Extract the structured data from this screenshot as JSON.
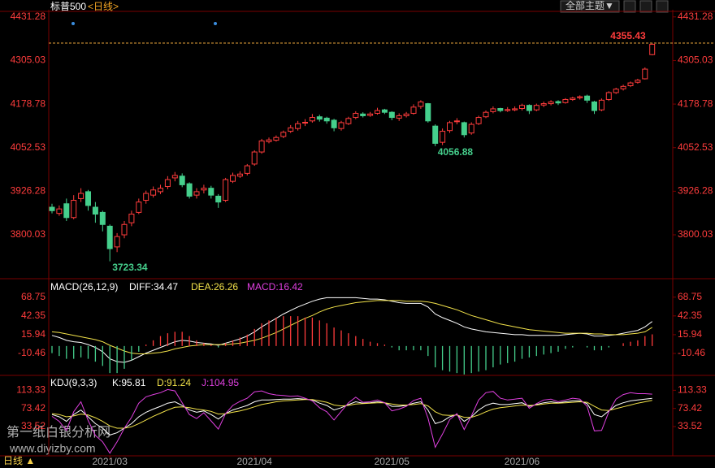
{
  "toolbar": {
    "theme_button": "全部主题▼"
  },
  "footer": {
    "period": "日线 ▲"
  },
  "watermark": {
    "line1": "第一纸白银分析网",
    "line2": "www.diyizby.com"
  },
  "chart_data": [
    {
      "type": "candlestick",
      "title": "标普500",
      "subtitle": "<日线>",
      "up_color": "#ff3c3c",
      "down_color": "#45cf8c",
      "ylim": [
        3680,
        4452
      ],
      "yticks": [
        4431.28,
        4305.03,
        4178.78,
        4052.53,
        3926.28,
        3800.03
      ],
      "xticks": [
        {
          "value": 8,
          "label": "2021/03"
        },
        {
          "value": 28,
          "label": "2021/04"
        },
        {
          "value": 47,
          "label": "2021/05"
        },
        {
          "value": 65,
          "label": "2021/06"
        }
      ],
      "labeled_points": [
        {
          "field": "low",
          "index": 8,
          "color": "#45cf8c"
        },
        {
          "field": "low",
          "index": 53,
          "color": "#45cf8c"
        },
        {
          "field": "high",
          "index": 83,
          "color": "#ff3c3c",
          "line": true
        }
      ],
      "candles": {
        "open": [
          3880,
          3862,
          3890,
          3850,
          3905,
          3925,
          3880,
          3865,
          3825,
          3765,
          3800,
          3835,
          3865,
          3900,
          3915,
          3925,
          3940,
          3965,
          3970,
          3948,
          3915,
          3930,
          3935,
          3912,
          3900,
          3955,
          3970,
          3978,
          4005,
          4040,
          4070,
          4074,
          4085,
          4100,
          4108,
          4125,
          4130,
          4142,
          4138,
          4132,
          4108,
          4122,
          4140,
          4150,
          4146,
          4152,
          4162,
          4155,
          4138,
          4145,
          4152,
          4172,
          4180,
          4115,
          4068,
          4102,
          4128,
          4125,
          4095,
          4122,
          4142,
          4157,
          4166,
          4160,
          4162,
          4166,
          4175,
          4162,
          4176,
          4180,
          4186,
          4183,
          4192,
          4197,
          4202,
          4185,
          4162,
          4192,
          4212,
          4223,
          4232,
          4242,
          4252,
          4322
        ],
        "high": [
          3890,
          3885,
          3905,
          3915,
          3935,
          3930,
          3895,
          3870,
          3830,
          3805,
          3840,
          3870,
          3905,
          3928,
          3940,
          3945,
          3970,
          3982,
          3978,
          3952,
          3935,
          3945,
          3942,
          3918,
          3965,
          3980,
          3984,
          4005,
          4045,
          4078,
          4082,
          4088,
          4102,
          4118,
          4130,
          4135,
          4150,
          4148,
          4142,
          4136,
          4130,
          4142,
          4158,
          4155,
          4156,
          4168,
          4165,
          4158,
          4152,
          4156,
          4178,
          4190,
          4182,
          4120,
          4108,
          4130,
          4138,
          4128,
          4126,
          4145,
          4160,
          4172,
          4168,
          4170,
          4172,
          4180,
          4178,
          4180,
          4186,
          4190,
          4190,
          4196,
          4200,
          4204,
          4206,
          4188,
          4195,
          4216,
          4226,
          4235,
          4244,
          4252,
          4285,
          4355.43
        ],
        "low": [
          3862,
          3855,
          3840,
          3845,
          3895,
          3870,
          3835,
          3810,
          3723.34,
          3750,
          3790,
          3825,
          3860,
          3890,
          3908,
          3918,
          3932,
          3955,
          3938,
          3905,
          3905,
          3920,
          3905,
          3878,
          3895,
          3950,
          3965,
          3972,
          4000,
          4035,
          4065,
          4070,
          4080,
          4095,
          4102,
          4115,
          4125,
          4128,
          4122,
          4100,
          4102,
          4118,
          4135,
          4140,
          4142,
          4148,
          4150,
          4132,
          4130,
          4140,
          4148,
          4165,
          4125,
          4056.88,
          4060,
          4095,
          4120,
          4082,
          4090,
          4118,
          4138,
          4152,
          4155,
          4156,
          4158,
          4160,
          4150,
          4158,
          4170,
          4175,
          4176,
          4180,
          4188,
          4192,
          4182,
          4150,
          4158,
          4188,
          4208,
          4218,
          4228,
          4238,
          4250,
          4320
        ],
        "close": [
          3870,
          3875,
          3850,
          3900,
          3920,
          3885,
          3860,
          3830,
          3760,
          3795,
          3830,
          3860,
          3895,
          3920,
          3930,
          3935,
          3960,
          3972,
          3945,
          3912,
          3925,
          3935,
          3915,
          3895,
          3960,
          3972,
          3976,
          4000,
          4040,
          4072,
          4075,
          4082,
          4097,
          4110,
          4122,
          4126,
          4140,
          4135,
          4130,
          4110,
          4125,
          4137,
          4152,
          4145,
          4150,
          4160,
          4155,
          4140,
          4145,
          4150,
          4170,
          4185,
          4130,
          4065,
          4100,
          4125,
          4130,
          4090,
          4120,
          4140,
          4155,
          4165,
          4160,
          4163,
          4165,
          4175,
          4160,
          4175,
          4180,
          4185,
          4182,
          4192,
          4196,
          4200,
          4190,
          4160,
          4190,
          4212,
          4222,
          4230,
          4240,
          4248,
          4280,
          4352
        ]
      }
    },
    {
      "type": "macd",
      "title": "MACD(26,12,9)",
      "ylim": [
        -39,
        89
      ],
      "yticks": [
        68.75,
        42.35,
        15.94,
        -10.46
      ],
      "pos_color": "#ff3c3c",
      "neg_color": "#45cf8c",
      "series": [
        {
          "name": "DIFF",
          "label": "DIFF:34.47",
          "color": "#ffffff",
          "values": [
            15,
            12,
            8,
            6,
            5,
            2,
            -2,
            -8,
            -18,
            -22,
            -23,
            -20,
            -15,
            -10,
            -6,
            -2,
            2,
            6,
            8,
            7,
            5,
            4,
            3,
            1,
            4,
            7,
            10,
            14,
            20,
            27,
            33,
            39,
            45,
            50,
            55,
            59,
            63,
            66,
            68,
            68,
            68,
            68,
            68,
            67,
            66,
            66,
            65,
            63,
            61,
            60,
            60,
            60,
            55,
            45,
            40,
            36,
            32,
            27,
            24,
            22,
            20,
            19,
            18,
            17,
            16,
            16,
            15,
            15,
            15,
            15,
            15,
            16,
            17,
            18,
            17,
            14,
            14,
            15,
            16,
            18,
            20,
            22,
            27,
            34.47
          ]
        },
        {
          "name": "DEA",
          "label": "DEA:26.26",
          "color": "#f2e24a",
          "values": [
            20,
            19,
            17,
            15,
            13,
            11,
            9,
            6,
            1,
            -3,
            -7,
            -10,
            -11,
            -11,
            -10,
            -9,
            -7,
            -4,
            -2,
            0,
            1,
            2,
            2,
            2,
            2,
            3,
            4,
            6,
            8,
            11,
            15,
            19,
            24,
            29,
            34,
            39,
            43,
            48,
            52,
            55,
            57,
            59,
            61,
            62,
            63,
            64,
            64,
            64,
            64,
            63,
            63,
            63,
            62,
            60,
            57,
            54,
            51,
            47,
            43,
            40,
            37,
            34,
            31,
            29,
            27,
            25,
            23,
            22,
            21,
            20,
            19,
            18,
            18,
            18,
            18,
            17,
            17,
            16,
            16,
            16,
            17,
            18,
            20,
            26.26
          ]
        },
        {
          "name": "MACD",
          "label": "MACD:16.42",
          "color": "#e040e0",
          "bars": true,
          "values": [
            -10,
            -14,
            -18,
            -18,
            -16,
            -18,
            -22,
            -28,
            -38,
            -38,
            -32,
            -20,
            -8,
            2,
            8,
            14,
            18,
            20,
            20,
            14,
            8,
            4,
            2,
            -2,
            4,
            8,
            12,
            16,
            24,
            32,
            36,
            40,
            42,
            42,
            42,
            40,
            40,
            36,
            32,
            26,
            22,
            18,
            14,
            10,
            6,
            4,
            2,
            -2,
            -6,
            -6,
            -6,
            -6,
            -14,
            -30,
            -34,
            -36,
            -38,
            -40,
            -38,
            -36,
            -34,
            -30,
            -26,
            -24,
            -22,
            -18,
            -16,
            -14,
            -12,
            -10,
            -8,
            -4,
            -2,
            0,
            -2,
            -6,
            -6,
            -2,
            0,
            4,
            6,
            8,
            14,
            16.42
          ]
        }
      ]
    },
    {
      "type": "kdj",
      "title": "KDJ(9,3,3)",
      "ylim": [
        -29,
        139
      ],
      "yticks": [
        113.33,
        73.42,
        33.52
      ],
      "series": [
        {
          "name": "K",
          "label": "K:95.81",
          "color": "#ffffff",
          "values": [
            60,
            55,
            45,
            60,
            70,
            55,
            40,
            30,
            15,
            20,
            30,
            40,
            55,
            65,
            72,
            78,
            85,
            88,
            80,
            70,
            65,
            68,
            60,
            50,
            62,
            70,
            75,
            80,
            88,
            92,
            92,
            93,
            94,
            94,
            95,
            94,
            92,
            85,
            80,
            70,
            75,
            82,
            88,
            85,
            86,
            88,
            86,
            78,
            78,
            80,
            85,
            88,
            70,
            40,
            45,
            55,
            60,
            45,
            55,
            70,
            80,
            85,
            82,
            82,
            84,
            86,
            78,
            82,
            86,
            88,
            86,
            88,
            90,
            90,
            84,
            60,
            55,
            68,
            80,
            86,
            90,
            92,
            94,
            95.81
          ]
        },
        {
          "name": "D",
          "label": "D:91.24",
          "color": "#f2e24a",
          "values": [
            62,
            60,
            55,
            57,
            61,
            59,
            53,
            45,
            35,
            30,
            30,
            33,
            40,
            48,
            56,
            63,
            70,
            76,
            77,
            75,
            72,
            70,
            67,
            61,
            62,
            65,
            68,
            72,
            77,
            82,
            85,
            88,
            90,
            91,
            92,
            93,
            93,
            90,
            87,
            81,
            79,
            80,
            83,
            84,
            85,
            86,
            86,
            83,
            81,
            81,
            82,
            84,
            79,
            66,
            59,
            58,
            59,
            54,
            54,
            59,
            66,
            72,
            75,
            77,
            79,
            81,
            80,
            81,
            83,
            85,
            85,
            86,
            87,
            88,
            87,
            78,
            70,
            69,
            73,
            77,
            81,
            85,
            88,
            91.24
          ]
        },
        {
          "name": "J",
          "label": "J:104.95",
          "color": "#e040e0",
          "values": [
            56,
            45,
            25,
            66,
            88,
            47,
            14,
            0,
            -25,
            0,
            30,
            54,
            85,
            99,
            104,
            108,
            115,
            112,
            86,
            60,
            51,
            64,
            46,
            28,
            62,
            80,
            89,
            96,
            110,
            112,
            106,
            103,
            102,
            100,
            101,
            96,
            90,
            75,
            66,
            48,
            67,
            86,
            98,
            87,
            88,
            92,
            86,
            68,
            72,
            78,
            91,
            96,
            52,
            -12,
            17,
            49,
            62,
            27,
            57,
            92,
            108,
            111,
            96,
            92,
            94,
            96,
            74,
            84,
            92,
            94,
            88,
            92,
            96,
            94,
            78,
            24,
            25,
            66,
            94,
            104,
            108,
            106,
            106,
            104.95
          ]
        }
      ]
    }
  ]
}
